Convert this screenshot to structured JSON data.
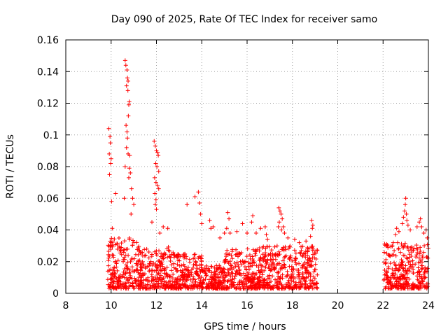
{
  "chart_data": {
    "type": "scatter",
    "title": "Day 090 of 2025, Rate Of TEC Index for receiver samo",
    "xlabel": "GPS time / hours",
    "ylabel": "ROTI / TECUs",
    "xlim": [
      8,
      24
    ],
    "ylim": [
      0,
      0.16
    ],
    "xticks": [
      "8",
      "10",
      "12",
      "14",
      "16",
      "18",
      "20",
      "22",
      "24"
    ],
    "yticks": [
      "0",
      "0.02",
      "0.04",
      "0.06",
      "0.08",
      "0.1",
      "0.12",
      "0.14",
      "0.16"
    ],
    "grid": true,
    "marker": "+",
    "color": "#ff0000",
    "series": [
      {
        "name": "ROTI",
        "points": [
          [
            9.9,
            0.104
          ],
          [
            9.95,
            0.099
          ],
          [
            9.97,
            0.095
          ],
          [
            9.92,
            0.088
          ],
          [
            10.0,
            0.085
          ],
          [
            9.98,
            0.082
          ],
          [
            9.93,
            0.075
          ],
          [
            10.02,
            0.058
          ],
          [
            10.05,
            0.041
          ],
          [
            10.2,
            0.063
          ],
          [
            10.62,
            0.147
          ],
          [
            10.65,
            0.144
          ],
          [
            10.7,
            0.141
          ],
          [
            10.72,
            0.136
          ],
          [
            10.75,
            0.134
          ],
          [
            10.68,
            0.131
          ],
          [
            10.74,
            0.128
          ],
          [
            10.8,
            0.121
          ],
          [
            10.78,
            0.119
          ],
          [
            10.76,
            0.112
          ],
          [
            10.66,
            0.106
          ],
          [
            10.7,
            0.102
          ],
          [
            10.72,
            0.098
          ],
          [
            10.68,
            0.092
          ],
          [
            10.75,
            0.088
          ],
          [
            10.82,
            0.087
          ],
          [
            10.8,
            0.079
          ],
          [
            10.85,
            0.076
          ],
          [
            10.78,
            0.073
          ],
          [
            10.9,
            0.066
          ],
          [
            10.95,
            0.06
          ],
          [
            11.0,
            0.056
          ],
          [
            10.62,
            0.08
          ],
          [
            10.58,
            0.06
          ],
          [
            10.88,
            0.05
          ],
          [
            11.9,
            0.096
          ],
          [
            11.95,
            0.093
          ],
          [
            12.0,
            0.09
          ],
          [
            12.05,
            0.089
          ],
          [
            12.08,
            0.087
          ],
          [
            11.97,
            0.082
          ],
          [
            12.02,
            0.08
          ],
          [
            12.1,
            0.077
          ],
          [
            11.92,
            0.073
          ],
          [
            11.98,
            0.07
          ],
          [
            12.05,
            0.068
          ],
          [
            12.1,
            0.066
          ],
          [
            11.93,
            0.063
          ],
          [
            11.98,
            0.059
          ],
          [
            11.95,
            0.056
          ],
          [
            12.0,
            0.053
          ],
          [
            11.8,
            0.045
          ],
          [
            12.3,
            0.042
          ],
          [
            12.5,
            0.041
          ],
          [
            12.15,
            0.038
          ],
          [
            13.35,
            0.056
          ],
          [
            13.7,
            0.061
          ],
          [
            13.85,
            0.064
          ],
          [
            13.9,
            0.057
          ],
          [
            13.95,
            0.05
          ],
          [
            14.0,
            0.044
          ],
          [
            14.35,
            0.046
          ],
          [
            14.4,
            0.041
          ],
          [
            14.5,
            0.042
          ],
          [
            14.8,
            0.035
          ],
          [
            15.15,
            0.051
          ],
          [
            15.2,
            0.047
          ],
          [
            15.1,
            0.041
          ],
          [
            15.0,
            0.038
          ],
          [
            15.25,
            0.038
          ],
          [
            15.55,
            0.039
          ],
          [
            15.8,
            0.044
          ],
          [
            16.0,
            0.038
          ],
          [
            16.2,
            0.045
          ],
          [
            16.25,
            0.049
          ],
          [
            16.4,
            0.038
          ],
          [
            16.6,
            0.041
          ],
          [
            16.8,
            0.042
          ],
          [
            16.85,
            0.037
          ],
          [
            16.9,
            0.034
          ],
          [
            17.4,
            0.054
          ],
          [
            17.45,
            0.052
          ],
          [
            17.5,
            0.05
          ],
          [
            17.55,
            0.047
          ],
          [
            17.42,
            0.045
          ],
          [
            17.38,
            0.042
          ],
          [
            17.52,
            0.04
          ],
          [
            17.6,
            0.042
          ],
          [
            17.65,
            0.038
          ],
          [
            17.8,
            0.035
          ],
          [
            18.1,
            0.034
          ],
          [
            18.3,
            0.032
          ],
          [
            18.6,
            0.033
          ],
          [
            18.85,
            0.046
          ],
          [
            18.9,
            0.043
          ],
          [
            18.88,
            0.041
          ],
          [
            18.8,
            0.036
          ],
          [
            22.45,
            0.032
          ],
          [
            22.55,
            0.037
          ],
          [
            22.6,
            0.041
          ],
          [
            22.7,
            0.039
          ],
          [
            22.85,
            0.044
          ],
          [
            22.9,
            0.048
          ],
          [
            22.95,
            0.052
          ],
          [
            23.0,
            0.06
          ],
          [
            22.98,
            0.056
          ],
          [
            23.03,
            0.05
          ],
          [
            23.05,
            0.046
          ],
          [
            23.1,
            0.043
          ],
          [
            23.2,
            0.04
          ],
          [
            23.5,
            0.042
          ],
          [
            23.6,
            0.045
          ],
          [
            23.65,
            0.047
          ],
          [
            23.7,
            0.042
          ],
          [
            23.8,
            0.038
          ],
          [
            23.9,
            0.04
          ],
          [
            23.95,
            0.035
          ]
        ],
        "dense_bands": [
          {
            "x_range": [
              9.85,
              11.2
            ],
            "y_range": [
              0.003,
              0.035
            ]
          },
          {
            "x_range": [
              11.2,
              12.8
            ],
            "y_range": [
              0.003,
              0.03
            ]
          },
          {
            "x_range": [
              12.8,
              14.0
            ],
            "y_range": [
              0.003,
              0.025
            ]
          },
          {
            "x_range": [
              14.0,
              15.0
            ],
            "y_range": [
              0.003,
              0.018
            ]
          },
          {
            "x_range": [
              15.0,
              16.5
            ],
            "y_range": [
              0.003,
              0.028
            ]
          },
          {
            "x_range": [
              16.5,
              19.1
            ],
            "y_range": [
              0.003,
              0.03
            ]
          },
          {
            "x_range": [
              22.0,
              24.0
            ],
            "y_range": [
              0.003,
              0.032
            ]
          }
        ]
      }
    ]
  }
}
